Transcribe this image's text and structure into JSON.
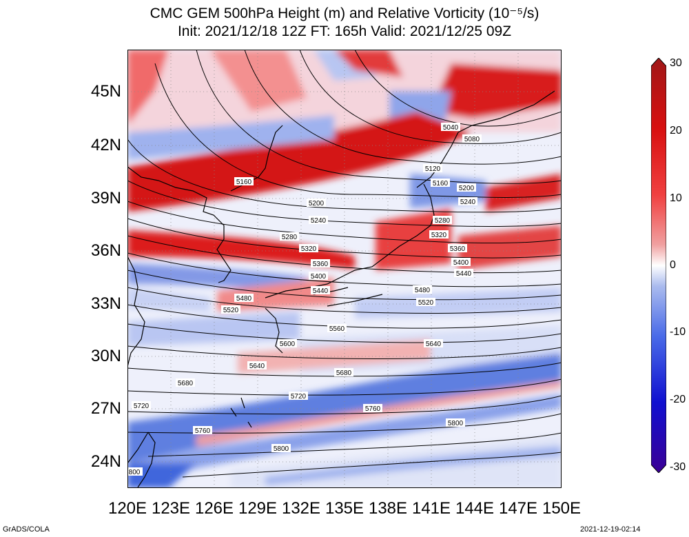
{
  "title": {
    "line1": "CMC GEM 500hPa Height (m) and Relative Vorticity (10⁻⁵/s)",
    "line2": "Init: 2021/12/18 12Z  FT: 165h  Valid: 2021/12/25 09Z"
  },
  "axes": {
    "lat_labels": [
      "45N",
      "42N",
      "39N",
      "36N",
      "33N",
      "30N",
      "27N",
      "24N"
    ],
    "lon_labels": [
      "120E",
      "123E",
      "126E",
      "129E",
      "132E",
      "135E",
      "138E",
      "141E",
      "144E",
      "147E",
      "150E"
    ]
  },
  "colorbar": {
    "ticks": [
      "30",
      "20",
      "10",
      "0",
      "-10",
      "-20",
      "-30"
    ],
    "colors": [
      "#3b0095",
      "#1010d0",
      "#4a6be8",
      "#aabbee",
      "#ffffff",
      "#f0a0a0",
      "#f04040",
      "#d81010",
      "#a01818"
    ]
  },
  "contour_labels": [
    {
      "text": "5040"
    },
    {
      "text": "5080"
    },
    {
      "text": "5120"
    },
    {
      "text": "5160"
    },
    {
      "text": "5160"
    },
    {
      "text": "5200"
    },
    {
      "text": "5200"
    },
    {
      "text": "5240"
    },
    {
      "text": "5240"
    },
    {
      "text": "5280"
    },
    {
      "text": "5280"
    },
    {
      "text": "5320"
    },
    {
      "text": "5320"
    },
    {
      "text": "5360"
    },
    {
      "text": "5360"
    },
    {
      "text": "5400"
    },
    {
      "text": "5400"
    },
    {
      "text": "5440"
    },
    {
      "text": "5440"
    },
    {
      "text": "5480"
    },
    {
      "text": "5480"
    },
    {
      "text": "5520"
    },
    {
      "text": "5520"
    },
    {
      "text": "5560"
    },
    {
      "text": "5600"
    },
    {
      "text": "5640"
    },
    {
      "text": "5640"
    },
    {
      "text": "5680"
    },
    {
      "text": "5680"
    },
    {
      "text": "5720"
    },
    {
      "text": "5720"
    },
    {
      "text": "5760"
    },
    {
      "text": "5760"
    },
    {
      "text": "5800"
    },
    {
      "text": "5800"
    },
    {
      "text": "800"
    }
  ],
  "footer": {
    "left": "GrADS/COLA",
    "right": "2021-12-19-02:14"
  }
}
